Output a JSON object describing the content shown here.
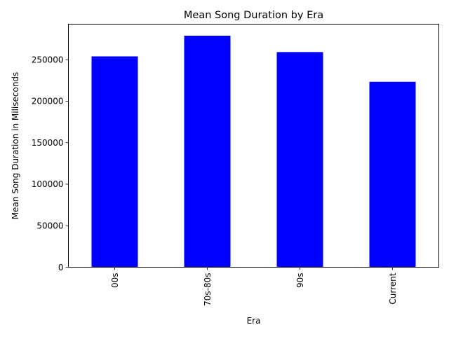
{
  "chart_data": {
    "type": "bar",
    "title": "Mean Song Duration by Era",
    "xlabel": "Era",
    "ylabel": "Mean Song Duration in Miliseconds",
    "categories": [
      "00s",
      "70s-80s",
      "90s",
      "Current"
    ],
    "values": [
      253900,
      278800,
      259100,
      223300
    ],
    "ylim": [
      0,
      292700
    ],
    "yticks": [
      0,
      50000,
      100000,
      150000,
      200000,
      250000
    ],
    "ytick_labels": [
      "0",
      "50000",
      "100000",
      "150000",
      "200000",
      "250000"
    ],
    "bar_color": "#0000ff",
    "grid": false,
    "legend": "none"
  }
}
